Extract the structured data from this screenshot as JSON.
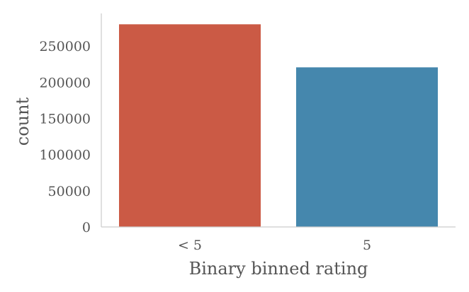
{
  "chart_data": {
    "type": "bar",
    "title": "",
    "xlabel": "Binary binned rating",
    "ylabel": "count",
    "categories": [
      "< 5",
      "5"
    ],
    "values": [
      280000,
      220500
    ],
    "ylim": [
      0,
      295000
    ],
    "yticks": [
      0,
      50000,
      100000,
      150000,
      200000,
      250000
    ],
    "ytick_labels": [
      "0",
      "50000",
      "100000",
      "150000",
      "200000",
      "250000"
    ],
    "colors": [
      "#cb5a45",
      "#4587ad"
    ],
    "grid": false,
    "legend": "none"
  }
}
